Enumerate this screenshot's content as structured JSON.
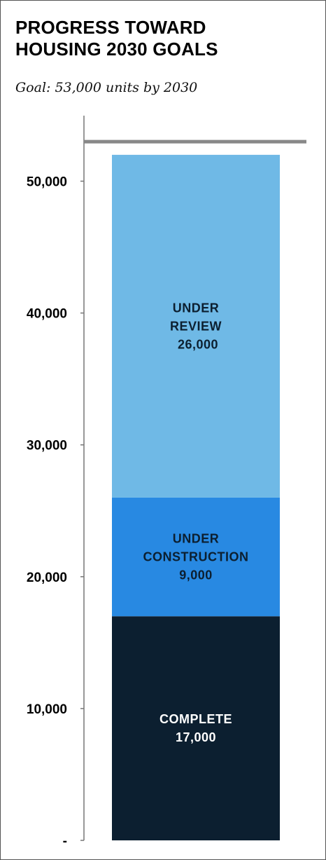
{
  "chart_data": {
    "type": "bar",
    "stacked": true,
    "title_lines": [
      "PROGRESS TOWARD",
      "HOUSING 2030 GOALS"
    ],
    "subtitle": "Goal: 53,000 units by 2030",
    "ylim": [
      0,
      53000
    ],
    "goal": 53000,
    "y_ticks": [
      {
        "value": 0,
        "label": "-"
      },
      {
        "value": 10000,
        "label": "10,000"
      },
      {
        "value": 20000,
        "label": "20,000"
      },
      {
        "value": 30000,
        "label": "30,000"
      },
      {
        "value": 40000,
        "label": "40,000"
      },
      {
        "value": 50000,
        "label": "50,000"
      }
    ],
    "series": [
      {
        "name": "COMPLETE",
        "value": 17000,
        "value_label": "17,000",
        "label_lines": [
          "COMPLETE",
          "17,000"
        ],
        "color": "#0c1f30",
        "text_color": "#ffffff"
      },
      {
        "name": "UNDER CONSTRUCTION",
        "value": 9000,
        "value_label": "9,000",
        "label_lines": [
          "UNDER",
          "CONSTRUCTION",
          "9,000"
        ],
        "color": "#2889e2",
        "text_color": "#0c1f30"
      },
      {
        "name": "UNDER REVIEW",
        "value": 26000,
        "value_label": "26,000",
        "label_lines": [
          "UNDER",
          "REVIEW",
          "26,000"
        ],
        "color": "#6fb9e6",
        "text_color": "#0c1f30"
      }
    ]
  }
}
